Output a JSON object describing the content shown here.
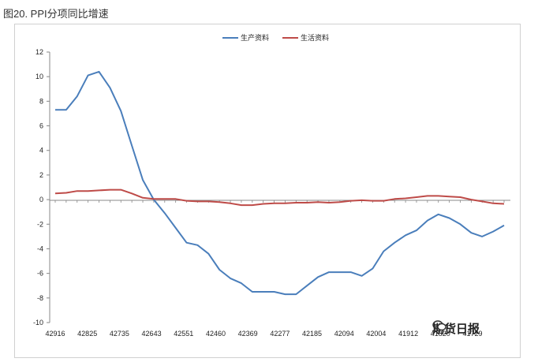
{
  "caption": "图20. PPI分项同比增速",
  "watermark": "期货日报",
  "chart_data": {
    "type": "line",
    "title": "",
    "xlabel": "",
    "ylabel": "",
    "ylim": [
      -10,
      12
    ],
    "yticks": [
      12,
      10,
      8,
      6,
      4,
      2,
      0,
      -2,
      -4,
      -6,
      -8,
      -10
    ],
    "x_tick_labels": [
      "42916",
      "42825",
      "42735",
      "42643",
      "42551",
      "42460",
      "42369",
      "42277",
      "42185",
      "42094",
      "42004",
      "41912",
      "41820",
      "41729"
    ],
    "legend": {
      "position": "top-center"
    },
    "grid": false,
    "series": [
      {
        "name": "生产资料",
        "color": "#4a7ebb",
        "values": [
          7.3,
          7.3,
          8.4,
          10.1,
          10.4,
          9.1,
          7.2,
          4.4,
          1.6,
          0.0,
          -1.1,
          -2.3,
          -3.5,
          -3.7,
          -4.4,
          -5.7,
          -6.4,
          -6.8,
          -7.5,
          -7.5,
          -7.5,
          -7.7,
          -7.7,
          -7.0,
          -6.3,
          -5.9,
          -5.9,
          -5.9,
          -6.2,
          -5.6,
          -4.2,
          -3.5,
          -2.9,
          -2.5,
          -1.7,
          -1.2,
          -1.5,
          -2.0,
          -2.7,
          -3.0,
          -2.6,
          -2.1
        ]
      },
      {
        "name": "生活资料",
        "color": "#be4b48",
        "values": [
          0.5,
          0.55,
          0.7,
          0.7,
          0.75,
          0.8,
          0.8,
          0.5,
          0.15,
          0.05,
          0.05,
          0.05,
          -0.1,
          -0.15,
          -0.15,
          -0.2,
          -0.3,
          -0.45,
          -0.45,
          -0.35,
          -0.3,
          -0.3,
          -0.25,
          -0.25,
          -0.2,
          -0.25,
          -0.2,
          -0.1,
          -0.05,
          -0.1,
          -0.1,
          0.05,
          0.1,
          0.2,
          0.3,
          0.3,
          0.25,
          0.2,
          0.0,
          -0.15,
          -0.3,
          -0.35
        ]
      }
    ]
  }
}
